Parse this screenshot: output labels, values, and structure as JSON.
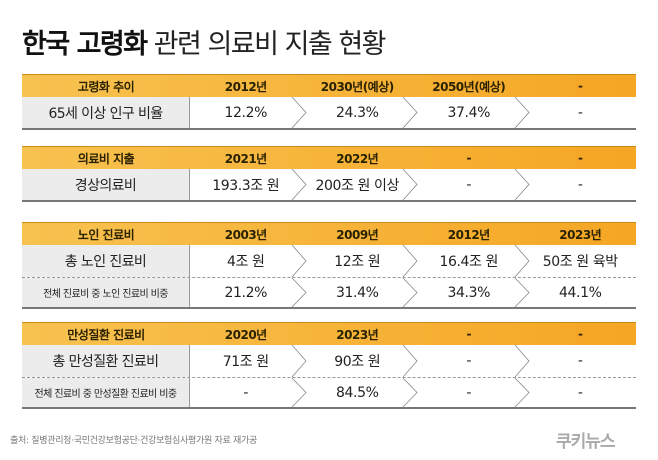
{
  "title": {
    "bold": "한국 고령화",
    "rest": "관련 의료비 지출 현황"
  },
  "sections": [
    {
      "header": [
        "고령화 추이",
        "2012년",
        "2030년(예상)",
        "2050년(예상)",
        "-"
      ],
      "rows": [
        {
          "label": "65세 이상 인구 비율",
          "values": [
            "12.2%",
            "24.3%",
            "37.4%",
            "-"
          ]
        }
      ]
    },
    {
      "header": [
        "의료비 지출",
        "2021년",
        "2022년",
        "-",
        "-"
      ],
      "rows": [
        {
          "label": "경상의료비",
          "values": [
            "193.3조 원",
            "200조 원 이상",
            "-",
            "-"
          ]
        }
      ]
    },
    {
      "header": [
        "노인 진료비",
        "2003년",
        "2009년",
        "2012년",
        "2023년"
      ],
      "rows": [
        {
          "label": "총 노인 진료비",
          "values": [
            "4조 원",
            "12조 원",
            "16.4조 원",
            "50조 원 육박"
          ]
        },
        {
          "label": "전체 진료비 중 노인 진료비 비중",
          "values": [
            "21.2%",
            "31.4%",
            "34.3%",
            "44.1%"
          ]
        }
      ]
    },
    {
      "header": [
        "만성질환 진료비",
        "2020년",
        "2023년",
        "-",
        "-"
      ],
      "rows": [
        {
          "label": "총 만성질환 진료비",
          "values": [
            "71조 원",
            "90조 원",
            "-",
            "-"
          ]
        },
        {
          "label": "전체 진료비 중 만성질환 진료비 비중",
          "values": [
            "-",
            "84.5%",
            "-",
            "-"
          ]
        }
      ]
    }
  ],
  "source": "출처: 질병관리청·국민건강보험공단·건강보험심사평가원 자료 재가공",
  "logo": "쿠키뉴스",
  "colors": {
    "header_start": "#f8c250",
    "header_end": "#f5a623",
    "label_bg": "#ececec"
  }
}
